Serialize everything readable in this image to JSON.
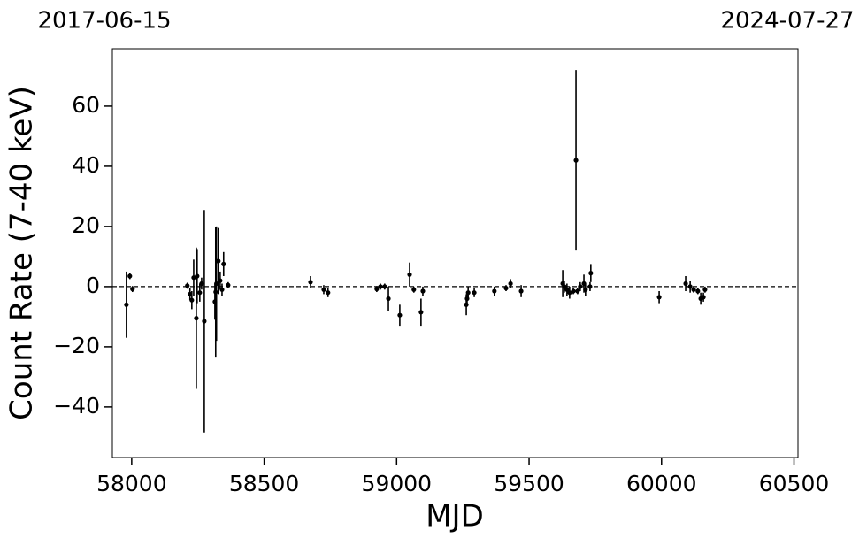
{
  "chart_data": {
    "type": "errorbar",
    "x_label": "MJD",
    "y_label": "Count Rate (7-40 keV)",
    "top_labels": [
      "2017-06-15",
      "2024-07-27"
    ],
    "color": "#000000",
    "hline": 0,
    "xlim": [
      57927,
      60515
    ],
    "ylim": [
      -56.8,
      79.1
    ],
    "xticks": [
      58000,
      58500,
      59000,
      59500,
      60000,
      60500
    ],
    "yticks": [
      {
        "value": -40,
        "label": "−40"
      },
      {
        "value": -20,
        "label": "−20"
      },
      0,
      20,
      40,
      60
    ],
    "x": [
      57980,
      57993,
      58003,
      58210,
      58220,
      58227,
      58234,
      58244,
      58247,
      58257,
      58264,
      58274,
      58314,
      58317,
      58320,
      58327,
      58334,
      58341,
      58347,
      58364,
      58675,
      58725,
      58741,
      58925,
      58939,
      58955,
      58969,
      59012,
      59049,
      59065,
      59092,
      59099,
      59263,
      59266,
      59270,
      59293,
      59369,
      59413,
      59430,
      59470,
      59627,
      59633,
      59643,
      59653,
      59667,
      59677,
      59683,
      59693,
      59707,
      59713,
      59730,
      59733,
      59991,
      60091,
      60108,
      60121,
      60137,
      60148,
      60158,
      60164
    ],
    "values": [
      -6,
      3.5,
      -0.8,
      0.3,
      -2.5,
      -4.5,
      3,
      -10.5,
      3.5,
      -2,
      1,
      -11.5,
      -5,
      -1.8,
      1,
      8.5,
      2,
      -1,
      7.5,
      0.5,
      1.5,
      -1,
      -2,
      -0.8,
      0,
      0,
      -4,
      -9.5,
      4,
      -1,
      -8.5,
      -1.5,
      -6,
      -4,
      -2,
      -2,
      -1.5,
      -0.5,
      1,
      -1.5,
      1,
      0,
      -1,
      -2,
      -1.5,
      42,
      -1.5,
      0,
      1,
      -1,
      0,
      4.5,
      -3.5,
      1,
      0,
      -1,
      -1.5,
      -4,
      -3.5,
      -1
    ],
    "errors": [
      11,
      1,
      1,
      1,
      2,
      3,
      6,
      23.5,
      9,
      3,
      2,
      37,
      6,
      21.5,
      19,
      11,
      3,
      2,
      4,
      1,
      2,
      1.5,
      1.5,
      1,
      1,
      1,
      4,
      3.5,
      4,
      1,
      4.5,
      1.5,
      3.5,
      2,
      2,
      1.5,
      1.5,
      1,
      1.5,
      2,
      4.5,
      2,
      2,
      2,
      1,
      30,
      1,
      1.5,
      3,
      2,
      1.5,
      3,
      2,
      2.5,
      2,
      1,
      1,
      2,
      1.5,
      1
    ]
  }
}
